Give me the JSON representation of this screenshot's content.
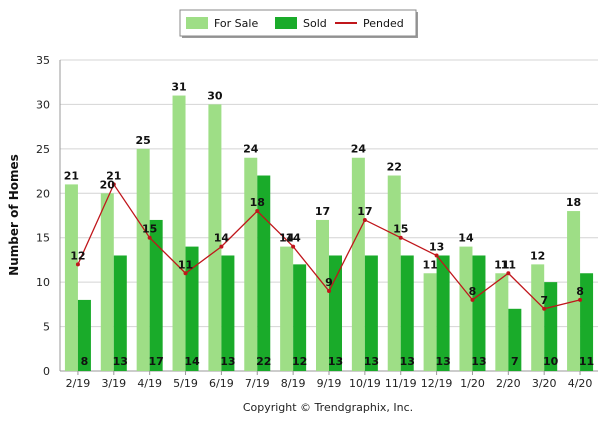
{
  "chart_data": {
    "type": "bar",
    "title": "",
    "xlabel": "",
    "ylabel": "Number of Homes",
    "ylim": [
      0,
      35
    ],
    "yticks": [
      0,
      5,
      10,
      15,
      20,
      25,
      30,
      35
    ],
    "grid": true,
    "legend_position": "top-center",
    "categories": [
      "2/19",
      "3/19",
      "4/19",
      "5/19",
      "6/19",
      "7/19",
      "8/19",
      "9/19",
      "10/19",
      "11/19",
      "12/19",
      "1/20",
      "2/20",
      "3/20",
      "4/20"
    ],
    "series": [
      {
        "name": "For Sale",
        "type": "bar",
        "color": "#9ede86",
        "values": [
          21,
          20,
          25,
          31,
          30,
          24,
          14,
          17,
          24,
          22,
          11,
          14,
          11,
          12,
          18
        ]
      },
      {
        "name": "Sold",
        "type": "bar",
        "color": "#1aab2a",
        "values": [
          8,
          13,
          17,
          14,
          13,
          22,
          12,
          13,
          13,
          13,
          13,
          13,
          7,
          10,
          11
        ]
      },
      {
        "name": "Pended",
        "type": "line",
        "color": "#c0161b",
        "values": [
          12,
          21,
          15,
          11,
          14,
          18,
          14,
          9,
          17,
          15,
          13,
          8,
          11,
          7,
          8
        ]
      }
    ]
  },
  "footer": {
    "copyright": "Copyright © Trendgraphix, Inc."
  }
}
